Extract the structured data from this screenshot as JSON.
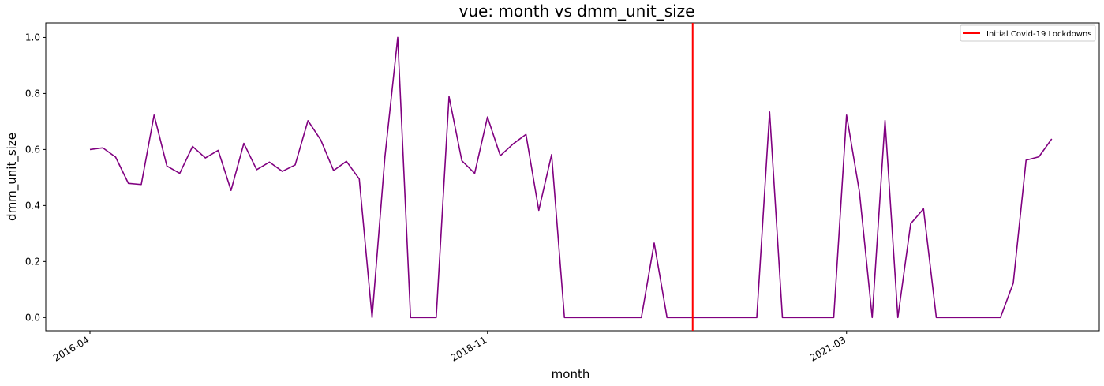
{
  "chart_data": {
    "type": "line",
    "title": "vue: month vs dmm_unit_size",
    "xlabel": "month",
    "ylabel": "dmm_unit_size",
    "x_start": "2016-04",
    "x_tick_labels": [
      "2016-04",
      "2018-11",
      "2021-03"
    ],
    "y_ticks": [
      "0.0",
      "0.2",
      "0.4",
      "0.6",
      "0.8",
      "1.0"
    ],
    "ylim": [
      -0.047,
      1.052
    ],
    "grid": false,
    "legend_position": "top-right",
    "series": [
      {
        "color": "#800080",
        "values": [
          0.6,
          0.606,
          0.573,
          0.479,
          0.475,
          0.723,
          0.541,
          0.515,
          0.611,
          0.57,
          0.597,
          0.454,
          0.622,
          0.528,
          0.555,
          0.522,
          0.545,
          0.703,
          0.634,
          0.525,
          0.558,
          0.495,
          0.0,
          0.573,
          1.0,
          0.0,
          0.0,
          0.0,
          0.789,
          0.56,
          0.515,
          0.716,
          0.578,
          0.62,
          0.654,
          0.383,
          0.582,
          0.0,
          0.0,
          0.0,
          0.0,
          0.0,
          0.0,
          0.0,
          0.266,
          0.0,
          0.0,
          0.0,
          0.0,
          0.0,
          0.0,
          0.0,
          0.0,
          0.734,
          0.0,
          0.0,
          0.0,
          0.0,
          0.0,
          0.723,
          0.45,
          0.0,
          0.704,
          0.0,
          0.335,
          0.388,
          0.0,
          0.0,
          0.0,
          0.0,
          0.0,
          0.0,
          0.123,
          0.562,
          0.574,
          0.638
        ]
      }
    ],
    "vertical_line": {
      "x": "2020-03",
      "label": "Initial Covid-19 Lockdowns",
      "color": "#ff0000"
    }
  }
}
